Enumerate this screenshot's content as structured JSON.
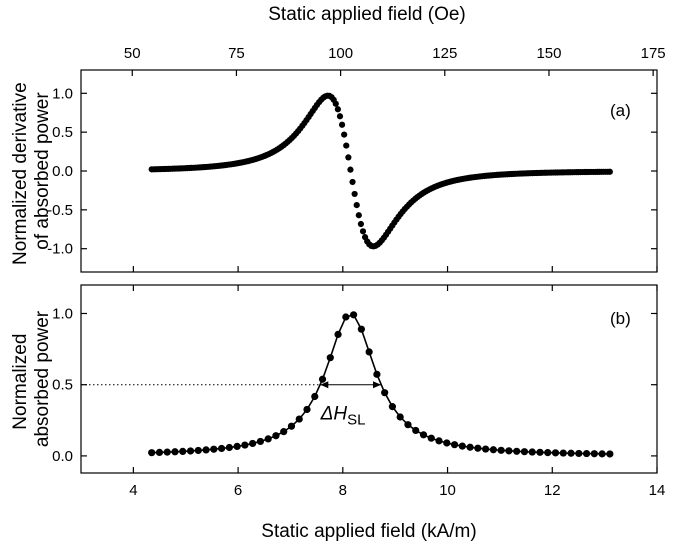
{
  "figure": {
    "top_axis_title": "Static applied field (Oe)",
    "bottom_axis_title": "Static applied field (kA/m)"
  },
  "chart_data": [
    {
      "id": "a",
      "type": "scatter",
      "panel_label": "(a)",
      "ylabel_lines": [
        "Normalized derivative",
        "of absorbed power"
      ],
      "xlim": [
        3.0,
        14.0
      ],
      "ylim": [
        -1.3,
        1.3
      ],
      "x_ticks": [
        "4",
        "6",
        "8",
        "10",
        "12",
        "14"
      ],
      "y_ticks": [
        "1.0",
        "0.5",
        "0.0",
        "-0.5",
        "-1.0"
      ],
      "y_tick_values": [
        1.0,
        0.5,
        0.0,
        -0.5,
        -1.0
      ],
      "top_axis": {
        "label": "Static applied field (Oe)",
        "ticks": [
          "50",
          "75",
          "100",
          "125",
          "150",
          "175"
        ],
        "tick_values_oe": [
          50,
          75,
          100,
          125,
          150,
          175
        ],
        "oe_per_kA_m": 12.566
      },
      "series": [
        {
          "model": "lorentzian_derivative",
          "x_range": [
            4.35,
            13.1
          ],
          "n_points": 220,
          "center": 8.15,
          "half_width": 0.75,
          "peak_value": 0.97
        }
      ],
      "grid": false
    },
    {
      "id": "b",
      "type": "line",
      "panel_label": "(b)",
      "ylabel_lines": [
        "Normalized",
        "absorbed power"
      ],
      "xlabel": "Static applied field (kA/m)",
      "xlim": [
        3.0,
        14.0
      ],
      "ylim": [
        -0.12,
        1.2
      ],
      "x_ticks": [
        "4",
        "6",
        "8",
        "10",
        "12",
        "14"
      ],
      "x_tick_values": [
        4,
        6,
        8,
        10,
        12,
        14
      ],
      "y_ticks": [
        "1.0",
        "0.5",
        "0.0"
      ],
      "y_tick_values": [
        1.0,
        0.5,
        0.0
      ],
      "series": [
        {
          "model": "lorentzian",
          "x_range": [
            4.35,
            13.1
          ],
          "n_points": 60,
          "center": 8.15,
          "half_width": 0.58,
          "markers": true,
          "connected": true
        }
      ],
      "annotation": {
        "label_main": "ΔH",
        "label_sub": "SL",
        "y": 0.5,
        "x_left": 7.57,
        "x_right": 8.73
      },
      "grid": false
    }
  ]
}
